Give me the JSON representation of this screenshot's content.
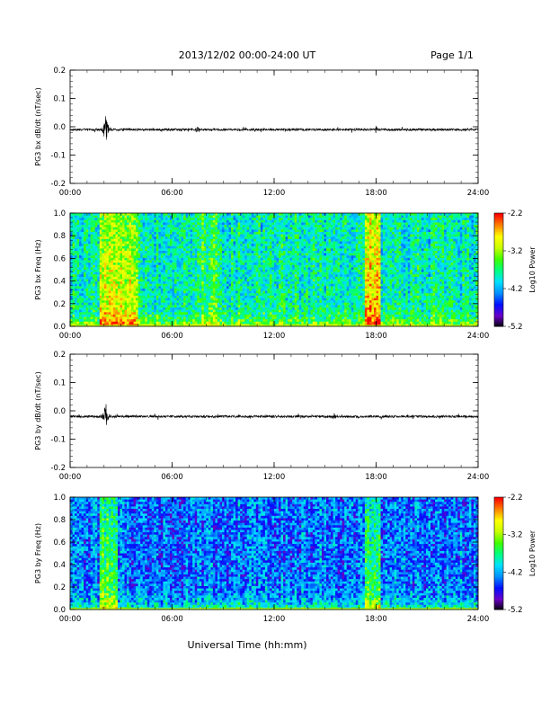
{
  "header": {
    "date_range": "2013/12/02  00:00-24:00 UT",
    "page": "Page 1/1"
  },
  "colors": {
    "line": "#000000",
    "colormap": [
      "#000000",
      "#6a00c8",
      "#0010ff",
      "#0090ff",
      "#00e0ff",
      "#00ff80",
      "#40ff00",
      "#c8ff00",
      "#ffff00",
      "#ff8000",
      "#ff0000"
    ]
  },
  "chart_data": [
    {
      "type": "line",
      "name": "bx-timeseries",
      "ylabel": "PG3 bx dB/dt (nT/sec)",
      "xlim": [
        "00:00",
        "24:00"
      ],
      "ylim": [
        -0.2,
        0.2
      ],
      "x_ticks": [
        "00:00",
        "06:00",
        "12:00",
        "18:00",
        "24:00"
      ],
      "y_ticks": [
        "0.2",
        "0.1",
        "0.0",
        "-0.1",
        "-0.2"
      ],
      "baseline": -0.01,
      "events": [
        {
          "time_h": 2.1,
          "peak": 0.05,
          "trough": -0.07
        },
        {
          "time_h": 7.5,
          "peak": 0.0,
          "trough": -0.03
        },
        {
          "time_h": 18.0,
          "peak": 0.0,
          "trough": -0.025
        }
      ]
    },
    {
      "type": "heatmap",
      "name": "bx-spectrogram",
      "ylabel": "PG3 bx Freq (Hz)",
      "xlim": [
        "00:00",
        "24:00"
      ],
      "ylim": [
        0.0,
        1.0
      ],
      "x_ticks": [
        "00:00",
        "06:00",
        "12:00",
        "18:00",
        "24:00"
      ],
      "y_ticks": [
        "1.0",
        "0.8",
        "0.6",
        "0.4",
        "0.2",
        "0.0"
      ],
      "colorbar": {
        "label": "Log10 Power",
        "range": [
          -5.2,
          -2.2
        ],
        "ticks": [
          "-2.2",
          "-3.2",
          "-4.2",
          "-5.2"
        ]
      },
      "bands_h": [
        [
          1.8,
          4.0,
          0.75
        ],
        [
          7.8,
          8.6,
          0.55
        ],
        [
          17.4,
          18.3,
          0.85
        ]
      ],
      "level": 0.45
    },
    {
      "type": "line",
      "name": "by-timeseries",
      "ylabel": "PG3 by dB/dt (nT/sec)",
      "xlim": [
        "00:00",
        "24:00"
      ],
      "ylim": [
        -0.2,
        0.2
      ],
      "x_ticks": [
        "00:00",
        "06:00",
        "12:00",
        "18:00",
        "24:00"
      ],
      "y_ticks": [
        "0.2",
        "0.1",
        "0.0",
        "-0.1",
        "-0.2"
      ],
      "baseline": -0.02,
      "events": [
        {
          "time_h": 2.1,
          "peak": 0.045,
          "trough": -0.06
        },
        {
          "time_h": 15.5,
          "peak": -0.005,
          "trough": -0.035
        }
      ]
    },
    {
      "type": "heatmap",
      "name": "by-spectrogram",
      "ylabel": "PG3 by Freq (Hz)",
      "xlim": [
        "00:00",
        "24:00"
      ],
      "ylim": [
        0.0,
        1.0
      ],
      "x_ticks": [
        "00:00",
        "06:00",
        "12:00",
        "18:00",
        "24:00"
      ],
      "y_ticks": [
        "1.0",
        "0.8",
        "0.6",
        "0.4",
        "0.2",
        "0.0"
      ],
      "colorbar": {
        "label": "Log10 Power",
        "range": [
          -5.2,
          -2.2
        ],
        "ticks": [
          "-2.2",
          "-3.2",
          "-4.2",
          "-5.2"
        ]
      },
      "bands_h": [
        [
          1.8,
          2.8,
          0.6
        ],
        [
          17.4,
          18.2,
          0.55
        ]
      ],
      "level": 0.28
    }
  ],
  "xlabel": "Universal Time (hh:mm)"
}
